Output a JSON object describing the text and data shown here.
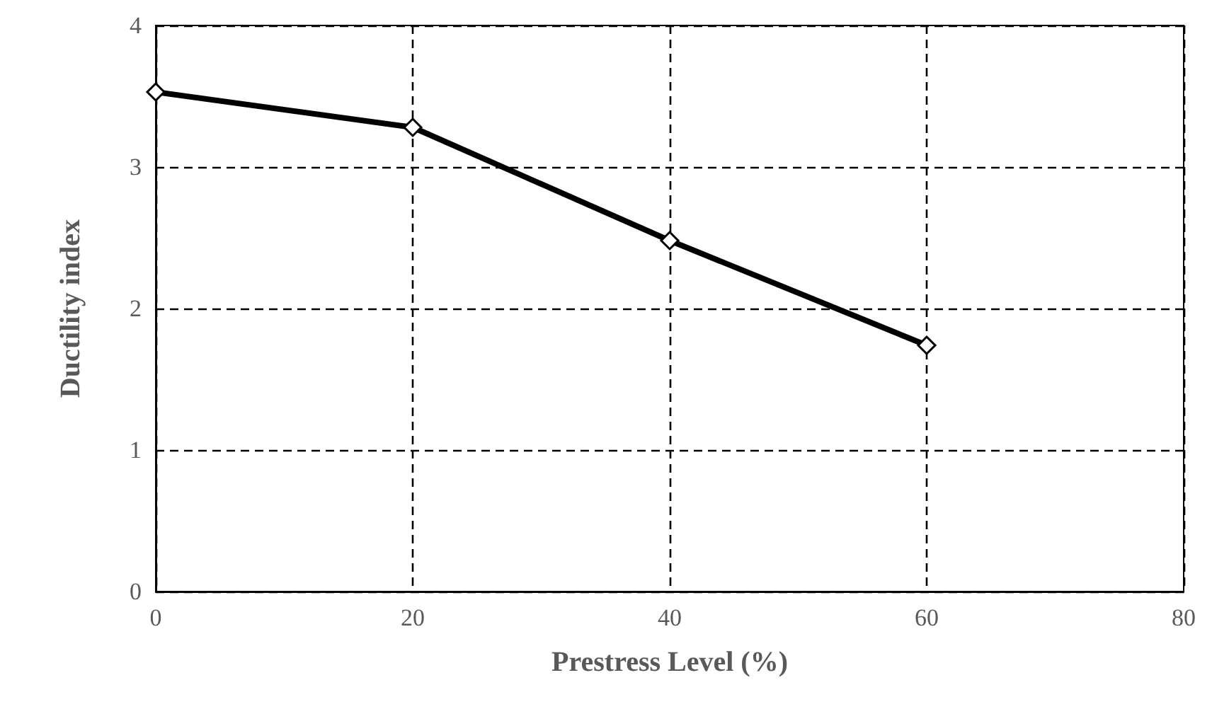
{
  "chart_data": {
    "type": "line",
    "xlabel": "Prestress Level (%)",
    "ylabel": "Ductility index",
    "x": [
      0,
      20,
      40,
      60
    ],
    "series": [
      {
        "color": "#000000",
        "values": [
          3.53,
          3.28,
          2.48,
          1.74
        ]
      }
    ],
    "xlim": [
      0,
      80
    ],
    "xticks": [
      0,
      20,
      40,
      60,
      80
    ],
    "ylim": [
      0,
      4
    ],
    "yticks": [
      0,
      1,
      2,
      3,
      4
    ],
    "grid": true,
    "marker": "diamond",
    "line_style": "solid"
  }
}
